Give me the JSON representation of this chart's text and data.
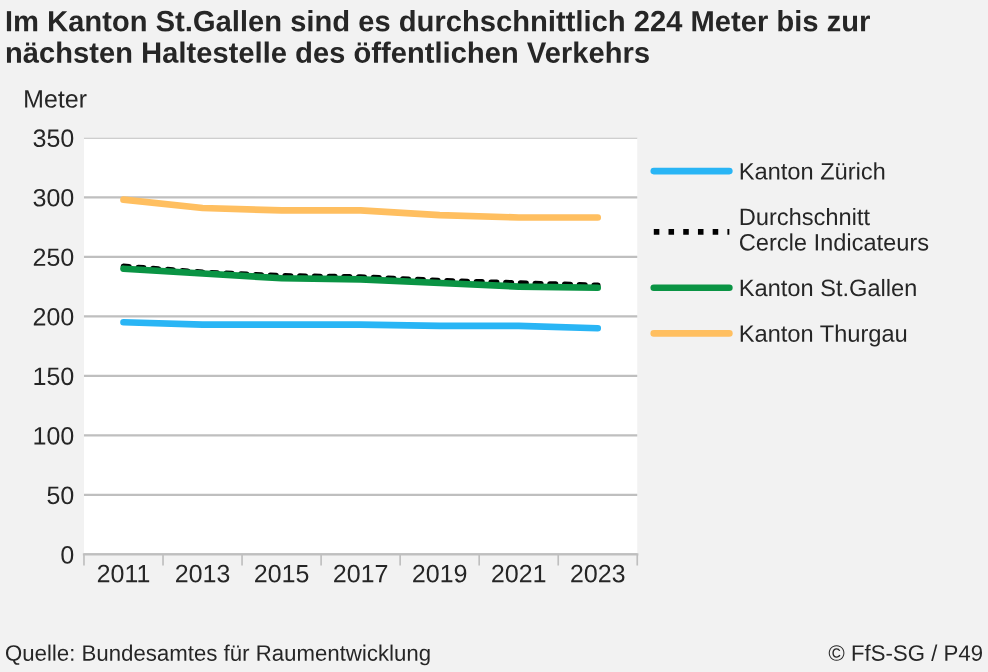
{
  "chart_data": {
    "type": "line",
    "title": "Im Kanton St.Gallen sind es durchschnittlich 224 Meter bis zur nächsten Haltestelle des öffentlichen Verkehrs",
    "ylabel": "Meter",
    "categories": [
      "2011",
      "2013",
      "2015",
      "2017",
      "2019",
      "2021",
      "2023"
    ],
    "series": [
      {
        "name": "Kanton Zürich",
        "color": "#29b5f5",
        "values": [
          195,
          193,
          193,
          193,
          192,
          192,
          190
        ]
      },
      {
        "name": "Durchschnitt\nCercle Indicateurs",
        "color": "#000000",
        "line_style": "dotted",
        "values": [
          242,
          237,
          234,
          233,
          230,
          228,
          226
        ]
      },
      {
        "name": "Kanton St.Gallen",
        "color": "#0a9444",
        "values": [
          240,
          236,
          232,
          231,
          228,
          225,
          224
        ]
      },
      {
        "name": "Kanton Thurgau",
        "color": "#ffbf60",
        "values": [
          298,
          291,
          289,
          289,
          285,
          283,
          283
        ]
      }
    ],
    "ylim": [
      0,
      350
    ],
    "yticks": [
      0,
      50,
      100,
      150,
      200,
      250,
      300,
      350
    ],
    "grid": "y",
    "legend": "right",
    "line_style": "solid",
    "annotations": [
      "Quelle: Bundesamtes für Raumentwicklung",
      "© FfS-SG / P49"
    ]
  }
}
